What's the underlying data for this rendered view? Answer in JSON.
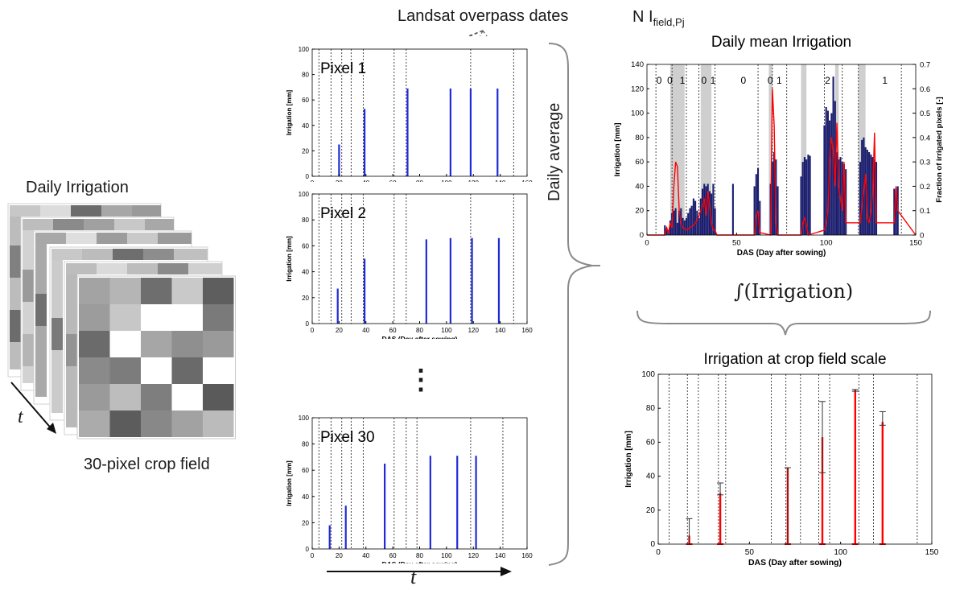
{
  "left": {
    "title": "Daily Irrigation",
    "time_symbol": "t",
    "caption": "30-pixel crop field",
    "front_grid": [
      [
        "#a3a3a3",
        "#b5b5b5",
        "#6e6e6e",
        "#c9c9c9",
        "#5e5e5e"
      ],
      [
        "#9c9c9c",
        "#c7c7c7",
        "#ffffff",
        "#ffffff",
        "#7a7a7a"
      ],
      [
        "#6b6b6b",
        "#ffffff",
        "#a6a6a6",
        "#8f8f8f",
        "#9a9a9a"
      ],
      [
        "#8a8a8a",
        "#7c7c7c",
        "#ffffff",
        "#6a6a6a",
        "#ffffff"
      ],
      [
        "#9a9a9a",
        "#bdbdbd",
        "#7e7e7e",
        "#ffffff",
        "#5a5a5a"
      ],
      [
        "#ababab",
        "#5c5c5c",
        "#888888",
        "#a2a2a2",
        "#bbbbbb"
      ]
    ]
  },
  "center": {
    "overpass_label": "Landsat overpass dates",
    "ellipsis": "⋮",
    "daily_average_label": "Daily average",
    "time_symbol": "t",
    "xlabel": "DAS (Day after sowing)",
    "ylabel": "Irrigation [mm]"
  },
  "right": {
    "n_label_main": "N I",
    "n_label_sub": "field,Pj",
    "integral_label": "∫(Irrigation)"
  },
  "chart_data": [
    {
      "type": "bar",
      "title": "Pixel 1",
      "xlabel": "DAS (Day after sowing)",
      "ylabel": "Irrigation [mm]",
      "xlim": [
        0,
        160
      ],
      "ylim": [
        0,
        100
      ],
      "xticks": [
        0,
        20,
        40,
        60,
        80,
        100,
        120,
        140,
        160
      ],
      "yticks": [
        0,
        20,
        40,
        60,
        80,
        100
      ],
      "overpass_lines": [
        5,
        14,
        22,
        29,
        38,
        61,
        70,
        118,
        150
      ],
      "x": [
        20,
        39,
        71,
        103,
        118,
        138
      ],
      "values": [
        25,
        53,
        69,
        69,
        69,
        69
      ]
    },
    {
      "type": "bar",
      "title": "Pixel 2",
      "xlabel": "DAS (Day after sowing)",
      "ylabel": "Irrigation [mm]",
      "xlim": [
        0,
        160
      ],
      "ylim": [
        0,
        100
      ],
      "xticks": [
        0,
        20,
        40,
        60,
        80,
        100,
        120,
        140,
        160
      ],
      "yticks": [
        0,
        20,
        40,
        60,
        80,
        100
      ],
      "overpass_lines": [
        5,
        14,
        22,
        29,
        38,
        61,
        70,
        118,
        150
      ],
      "x": [
        19,
        39,
        85,
        103,
        119,
        139
      ],
      "values": [
        27,
        50,
        65,
        66,
        66,
        66
      ]
    },
    {
      "type": "bar",
      "title": "Pixel 30",
      "xlabel": "DAS (Day after sowing)",
      "ylabel": "Irrigation [mm]",
      "xlim": [
        0,
        160
      ],
      "ylim": [
        0,
        100
      ],
      "xticks": [
        0,
        20,
        40,
        60,
        80,
        100,
        120,
        140,
        160
      ],
      "yticks": [
        0,
        20,
        40,
        60,
        80,
        100
      ],
      "overpass_lines": [
        5,
        14,
        22,
        29,
        38,
        61,
        70,
        78,
        118,
        142
      ],
      "x": [
        13,
        25,
        54,
        88,
        108,
        122
      ],
      "values": [
        18,
        33,
        65,
        71,
        71,
        71
      ]
    },
    {
      "type": "bar",
      "title": "Daily mean Irrigation",
      "xlabel": "DAS (Day after sowing)",
      "ylabel": "Irrigation [mm]",
      "y2label": "Fraction of irrigated pixels [-]",
      "xlim": [
        0,
        150
      ],
      "ylim": [
        0,
        140
      ],
      "y2lim": [
        0,
        0.7
      ],
      "xticks": [
        0,
        50,
        100,
        150
      ],
      "yticks": [
        0,
        20,
        40,
        60,
        80,
        100,
        120,
        140
      ],
      "y2ticks": [
        0,
        0.1,
        0.2,
        0.3,
        0.4,
        0.5,
        0.6,
        0.7
      ],
      "overpass_lines": [
        5,
        14,
        22,
        29,
        38,
        62,
        70,
        78,
        99,
        109,
        118,
        142
      ],
      "shaded_spans": [
        [
          13,
          21
        ],
        [
          30,
          36
        ],
        [
          68,
          70
        ],
        [
          86,
          89
        ],
        [
          105,
          107
        ],
        [
          118,
          122
        ]
      ],
      "counts": [
        {
          "x": 5,
          "label": "0"
        },
        {
          "x": 11,
          "label": "0"
        },
        {
          "x": 18,
          "label": "1"
        },
        {
          "x": 30,
          "label": "0"
        },
        {
          "x": 35,
          "label": "1"
        },
        {
          "x": 52,
          "label": "0"
        },
        {
          "x": 67,
          "label": "0"
        },
        {
          "x": 72,
          "label": "1"
        },
        {
          "x": 99,
          "label": "2"
        },
        {
          "x": 131,
          "label": "1"
        }
      ],
      "bars_x": [
        10,
        11,
        12,
        13,
        14,
        15,
        16,
        17,
        18,
        19,
        20,
        21,
        22,
        23,
        24,
        25,
        26,
        27,
        28,
        29,
        30,
        31,
        32,
        33,
        34,
        35,
        36,
        37,
        38,
        48,
        60,
        61,
        62,
        63,
        69,
        70,
        71,
        72,
        73,
        86,
        87,
        88,
        89,
        90,
        91,
        99,
        100,
        101,
        102,
        103,
        104,
        105,
        106,
        107,
        108,
        109,
        110,
        111,
        119,
        120,
        121,
        122,
        123,
        124,
        125,
        126,
        127,
        128,
        138,
        139,
        140
      ],
      "values": [
        8,
        6,
        4,
        12,
        18,
        20,
        22,
        10,
        20,
        22,
        14,
        12,
        14,
        18,
        22,
        24,
        30,
        28,
        20,
        14,
        30,
        38,
        42,
        40,
        42,
        36,
        34,
        42,
        22,
        42,
        40,
        50,
        55,
        28,
        42,
        60,
        68,
        62,
        40,
        48,
        60,
        64,
        62,
        66,
        65,
        90,
        105,
        102,
        94,
        100,
        130,
        110,
        68,
        62,
        64,
        60,
        58,
        54,
        60,
        78,
        80,
        72,
        70,
        68,
        66,
        64,
        62,
        60,
        38,
        35,
        40
      ],
      "fraction_x": [
        0,
        10,
        11,
        12,
        13,
        14,
        15,
        16,
        17,
        18,
        19,
        20,
        22,
        24,
        26,
        28,
        30,
        31,
        32,
        33,
        34,
        35,
        36,
        37,
        38,
        39,
        40,
        60,
        61,
        62,
        63,
        69,
        70,
        71,
        72,
        73,
        86,
        87,
        88,
        89,
        90,
        99,
        100,
        101,
        102,
        103,
        104,
        105,
        106,
        107,
        108,
        109,
        110,
        111,
        119,
        120,
        121,
        122,
        123,
        124,
        125,
        126,
        127,
        128,
        138,
        139,
        140,
        150
      ],
      "fraction_values": [
        0,
        0,
        0.03,
        0.01,
        0.05,
        0.03,
        0.2,
        0.3,
        0.28,
        0.1,
        0.05,
        0.03,
        0.02,
        0.03,
        0.04,
        0.06,
        0.1,
        0.12,
        0.15,
        0.08,
        0.18,
        0.12,
        0.05,
        0.02,
        0.02,
        0.0,
        0.0,
        0,
        0.08,
        0.1,
        0.01,
        0.0,
        0.6,
        0.45,
        0.05,
        0.0,
        0.0,
        0.05,
        0.07,
        0.04,
        0.0,
        0.02,
        0.05,
        0.1,
        0.3,
        0.4,
        0.35,
        0.2,
        0.46,
        0.2,
        0.15,
        0.1,
        0.3,
        0.05,
        0.05,
        0.12,
        0.18,
        0.25,
        0.07,
        0.05,
        0.1,
        0.17,
        0.42,
        0.05,
        0.05,
        0.2,
        0.1,
        0
      ]
    },
    {
      "type": "bar",
      "title": "Irrigation at crop field scale",
      "xlabel": "DAS (Day after sowing)",
      "ylabel": "Irrigation [mm]",
      "xlim": [
        0,
        150
      ],
      "ylim": [
        0,
        100
      ],
      "xticks": [
        0,
        50,
        100,
        150
      ],
      "yticks": [
        0,
        20,
        40,
        60,
        80,
        100
      ],
      "overpass_lines": [
        6,
        16,
        22,
        33,
        37,
        62,
        70,
        78,
        88,
        94,
        110,
        118,
        142
      ],
      "x": [
        17,
        34,
        71,
        90,
        108,
        123
      ],
      "values": [
        5,
        30,
        45,
        63,
        91,
        72
      ],
      "error_low": [
        0,
        29,
        0,
        42,
        90,
        70
      ],
      "error_high": [
        15,
        36,
        45,
        84,
        91,
        78
      ]
    }
  ],
  "colors": {
    "bar_blue": "#1f2bd8",
    "navy": "#1b1e6e",
    "red": "#ff0000",
    "shade": "#cfcfcf"
  }
}
